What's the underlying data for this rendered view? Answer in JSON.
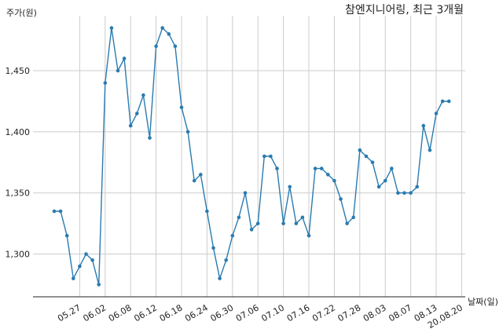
{
  "chart_data": {
    "type": "line",
    "title": "참엔지니어링, 최근 3개월",
    "ylabel": "주가(원)",
    "xlabel": "날짜(일)",
    "ylim": [
      1265,
      1495
    ],
    "yticks": [
      1300,
      1350,
      1400,
      1450
    ],
    "ytick_labels": [
      "1,300",
      "1,350",
      "1,400",
      "1,450"
    ],
    "xtick_labels": [
      "05.27",
      "06.02",
      "06.08",
      "06.12",
      "06.18",
      "06.24",
      "06.30",
      "07.06",
      "07.10",
      "07.16",
      "07.22",
      "07.28",
      "08.03",
      "08.07",
      "08.13",
      "20.08.20"
    ],
    "xtick_index": [
      4,
      8,
      12,
      16,
      20,
      24,
      28,
      32,
      36,
      40,
      44,
      48,
      52,
      56,
      60,
      64
    ],
    "grid": true,
    "line_color": "#2a7bb0",
    "series": [
      {
        "values": [
          1335,
          1335,
          1315,
          1280,
          1290,
          1300,
          1295,
          1275,
          1440,
          1485,
          1450,
          1460,
          1405,
          1415,
          1430,
          1395,
          1470,
          1485,
          1480,
          1470,
          1420,
          1400,
          1360,
          1365,
          1335,
          1305,
          1280,
          1295,
          1315,
          1330,
          1350,
          1320,
          1325,
          1380,
          1380,
          1370,
          1325,
          1355,
          1325,
          1330,
          1315,
          1370,
          1370,
          1365,
          1360,
          1345,
          1325,
          1330,
          1385,
          1380,
          1375,
          1355,
          1360,
          1370,
          1350,
          1350,
          1350,
          1355,
          1405,
          1385,
          1415,
          1425,
          1425
        ]
      }
    ]
  }
}
